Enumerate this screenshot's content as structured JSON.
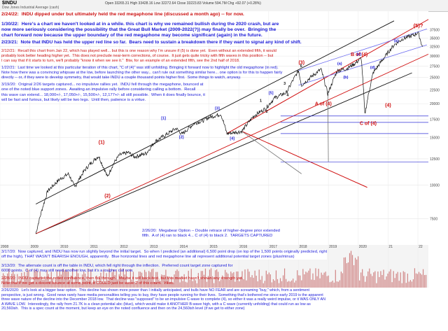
{
  "header": {
    "symbol": "$INDU",
    "subtitle": "Dow Jones Industrial Average (cash)",
    "stats": "Open 33265.31  High 33428.16  Low 32272.64  Close 33223.83  Volume 594.7M  Chg +92.07 (+0.28%)"
  },
  "chart_data": {
    "type": "line",
    "series": [
      {
        "name": "",
        "x": [
          2009.2,
          2009.6,
          2010.0,
          2010.3,
          2010.5,
          2010.8,
          2011.0,
          2011.3,
          2011.6,
          2011.8,
          2012.0,
          2012.3,
          2012.5,
          2012.9,
          2013.2,
          2013.5,
          2013.9,
          2014.1,
          2014.5,
          2014.8,
          2015.0,
          2015.4,
          2015.6,
          2016.1,
          2016.5,
          2016.9,
          2017.2,
          2017.6,
          2018.0,
          2018.1,
          2018.4,
          2018.75,
          2018.98,
          2019.3,
          2019.6,
          2019.9,
          2020.1,
          2020.22,
          2020.5,
          2020.9,
          2021.2,
          2021.5,
          2021.9,
          2022.0,
          2022.15
        ],
        "values": [
          6600,
          9500,
          10500,
          11000,
          9800,
          11200,
          11900,
          12800,
          10700,
          12000,
          12900,
          13200,
          12700,
          13100,
          14500,
          15200,
          16200,
          15400,
          16900,
          17300,
          17800,
          18300,
          15500,
          15800,
          18000,
          19200,
          21000,
          22000,
          26500,
          23400,
          25000,
          26800,
          21700,
          26500,
          26900,
          28200,
          29500,
          18200,
          26000,
          29900,
          33000,
          34800,
          36000,
          36800,
          32500
        ]
      }
    ],
    "x_ticks": [
      "2008",
      "2009",
      "2010",
      "2011",
      "2012",
      "2013",
      "2014",
      "2015",
      "2016",
      "2017",
      "2018",
      "2019",
      "2020",
      "21",
      "22"
    ],
    "y_ticks": [
      "37500",
      "35000",
      "32500",
      "30000",
      "27500",
      "25000",
      "22500",
      "20000",
      "17500",
      "15000",
      "12500",
      "10000",
      "7500"
    ],
    "log_scale": true,
    "wave_labels": {
      "w1": "(1)",
      "w2": "(2)",
      "w3": "(3)",
      "w4": "(4)",
      "w5": "(5)?",
      "a4": "A of (4)",
      "b4": "B of (4)",
      "c4": "C of (4)",
      "s1": "[1]",
      "s2": "[2]",
      "s3": "[3]",
      "s4": "[4]",
      "s5": "[5]",
      "sa": "(a)",
      "sb": "(b)",
      "sc": "(c)",
      "sd": "(d)",
      "se": "(e)",
      "p1": "1",
      "p2": "2",
      "p3": "3",
      "p4": "4",
      "p5": "5"
    }
  },
  "annotations": {
    "a1": "2/24/22:  INDU dipped under but ultimately held the red megaphone line (discussed a month ago) -- for now.",
    "a2": "1/30/22:  Here's a chart we haven't looked at in a while. this chart is why we remained bullish during the 2020 crash, but are\nnow more seriously considering the possibility that the Great Bull Market (2009-2022(?)) may finally be over.  Bringing the\nchart forward now because the upper boundary of the red megaphone may become significant (again) in the future.",
    "a3": "2/23/21:  Note that INDU has held the upper red line so far.  Bears need to sustain a breakdown there if they want to signal any kind of shift.",
    "a4": "2/12/21:  Recall this chart from Jan 22, which has played well... but this is one reason why I'm unsure if (5) is done yet.  Even without an extended fifth, it would\nprobably look better heading higher yet.  This does not preclude near-term corrections, of course.  It just gets quite tricky with fifth waves in this position -- but\nI can say that if it starts to turn, we'll probably \"know it when we see it.\"  Btw, for an example of an extended fifth, see the 2nd half of 2018.",
    "a5": "1/22/21:  Last time we looked at this particular iteration of this chart, \"C of (4)\" was still unfolding. Bringing it forward now to highlight the old megaphone (in red).\nNote how there was a convincing whipsaw at the low, before launching the other way... can't rule out something similar here... one option is for this to happen fairly\ndirectly -- or, if they were to develop symmetry, that would take INDU a couple thousand points higher first.  Some things to watch, anyway.",
    "a6": "3/19/20:  Original 2/26 targets captured... no impulsive rallies yet.  INDU fell through the megaphone, bounced at\none of the noted blue support zones.  Awaiting an impulsive rally before considering calling a bottom.  Recall\nthis wave can extend... 18,000+/-, 17,050+/-, 15,500+/-, 12,177+/- all still possible.  When it does finally bounce, it\nwill be fast and furious, but likely will be two legs.  Until then, patience is a virtue.",
    "a7": "2/26/20:  Megabear Option -- Double retrace of higher-degree prior extended\nfifth.  A of (4) ran to black 4... C of (4) to black 2.  TARGETS CAPTURED",
    "a8": "3/17/20:  Now captured, and INDU has now run slightly beyond the initial target.  So when I predicted (an additional) 6,500 point drop (on top of the 1,500 points originally predicted, right\noff the high), THAT WASN'T BEARISH ENOUGH, apparently.  Blue horizontal lines and red megaphone line all represent additional potential target zones (plus/minus)",
    "a9": "3/13/20:  The alternate count is off the table in INDU, which fell right through the inflection.  Preferred count target zone captured for\n6000 points.  C of (4) may still need another low, but it's a tougher call now.",
    "a10": "2/28/20:  INDU captured the noted confluence, then fell through.  Maybe it will back-test, but this market hasn't shown any strength yet.\nNote that if we get a decent bounce at some point, it COULD just be wave 2 of this count.  Yikes.",
    "a11": "2/26/2020:  Let's look at a bigger bear option.  This decline has shown more power than I initially anticipated, and bulls have NO FEAR and are screaming \"buy,\" which, from a sentiment\nperspective, is just wrong.  Good news rarely have media personalities telling you to buy, they have people running for their lives.  Something that's bothered me since early 2019 is the apparent\nthree wave nature of the decline into the December 2018 low.  That decline was \"supposed\" to be an impulsive C-wave to complete (4), so either it was a really weird impulse, or it WAS ONLY AN\nA WAVE LOW.  Interestingly, the rally from 21.7K is a clean potential abc (blue), which would make it ANOTHER B-wave high, with a C wave (currently unfolding) that could run as low as\n20,560ish.  This is a spec count at the moment, but keep an eye on the noted confluence and then on the 24,560ish level (if we get to either zone)"
  }
}
